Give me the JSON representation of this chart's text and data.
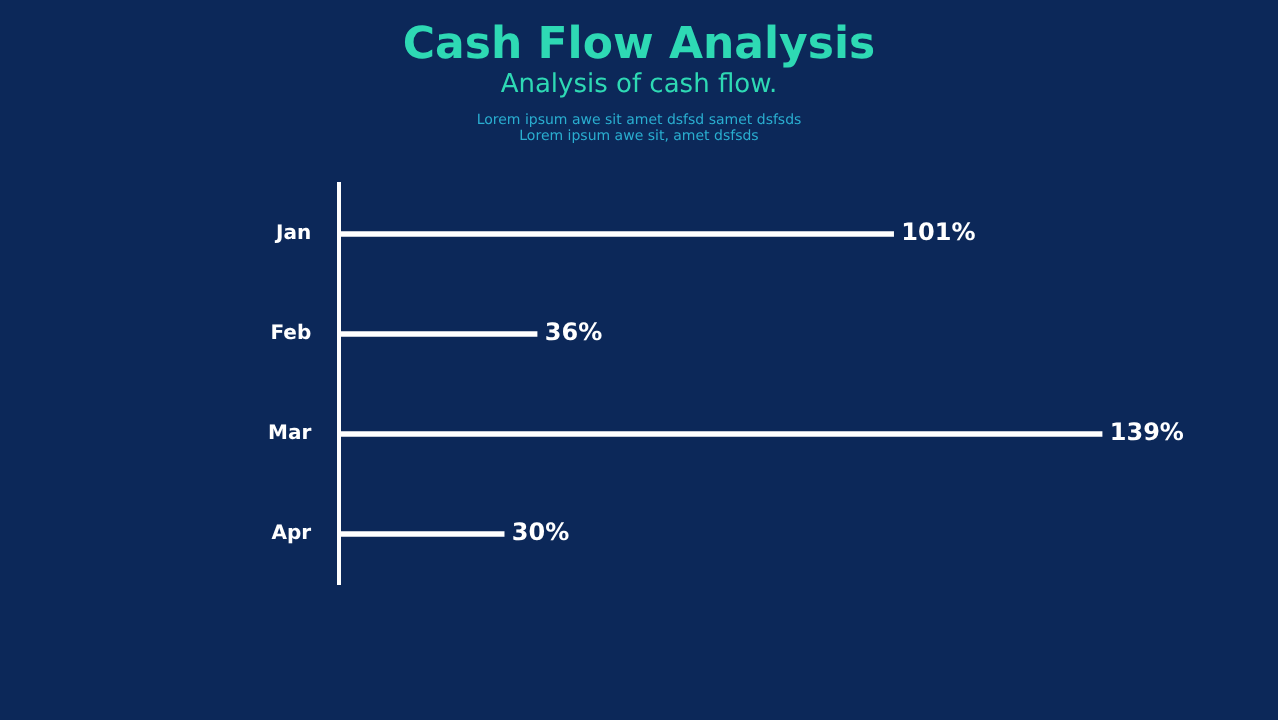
{
  "chart_data": {
    "type": "bar",
    "orientation": "horizontal",
    "title": "Cash Flow Analysis",
    "subtitle": "Analysis of cash flow.",
    "annotations": [
      "Lorem ipsum awe sit amet dsfsd samet dsfsds",
      "Lorem ipsum awe sit, amet dsfsds"
    ],
    "categories": [
      "Jan",
      "Feb",
      "Mar",
      "Apr"
    ],
    "values": [
      101,
      36,
      139,
      30
    ],
    "value_labels": [
      "101%",
      "36%",
      "139%",
      "30%"
    ],
    "color": "#ffffff",
    "tick_labels": "y",
    "grid": false,
    "legend": false
  }
}
